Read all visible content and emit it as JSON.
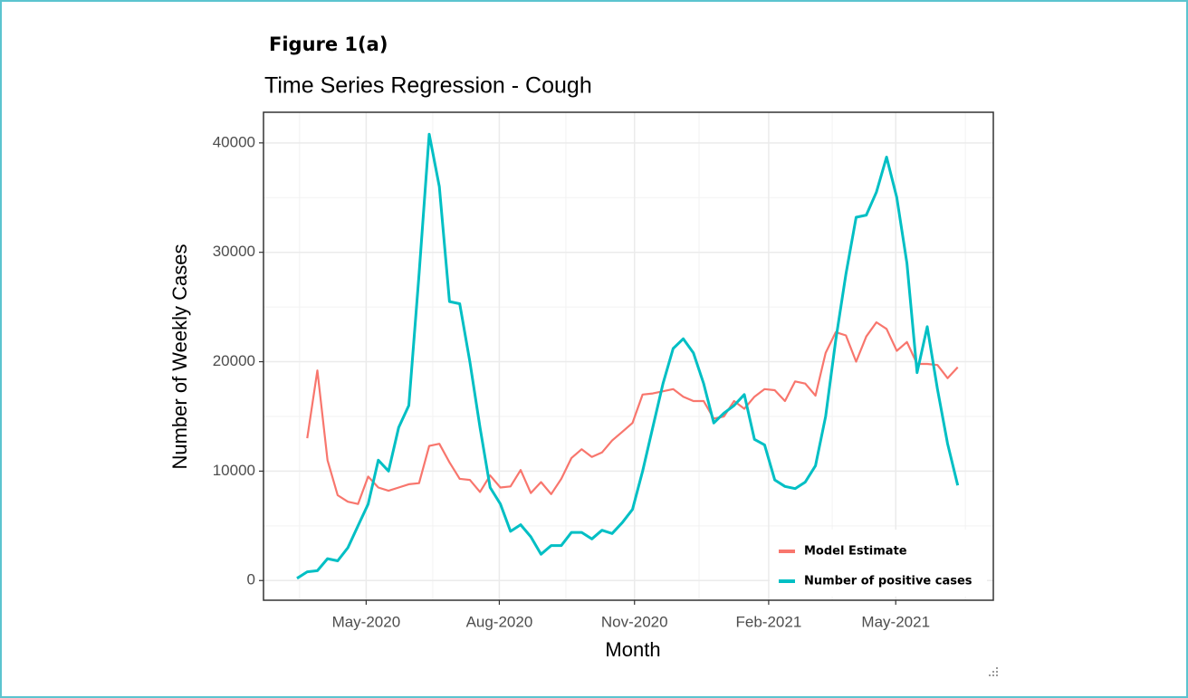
{
  "chart_data": {
    "type": "line",
    "figure_label": "Figure 1(a)",
    "title": "Time Series Regression - Cough",
    "x_label": "Month",
    "y_label": "Number of Weekly Cases",
    "x": [
      1,
      2,
      3,
      4,
      5,
      6,
      7,
      8,
      9,
      10,
      11,
      12,
      13,
      14,
      15,
      16,
      17,
      18,
      19,
      20,
      21,
      22,
      23,
      24,
      25,
      26,
      27,
      28,
      29,
      30,
      31,
      32,
      33,
      34,
      35,
      36,
      37,
      38,
      39,
      40,
      41,
      42,
      43,
      44,
      45,
      46,
      47,
      48,
      49,
      50,
      51,
      52,
      53,
      54,
      55,
      56,
      57,
      58,
      59,
      60,
      61,
      62,
      63,
      64,
      65,
      66
    ],
    "series": [
      {
        "name": "Model Estimate",
        "color": "#F8766D",
        "values": [
          null,
          13000,
          19200,
          11000,
          7800,
          7200,
          7000,
          9500,
          8500,
          8200,
          8500,
          8800,
          8900,
          12300,
          12500,
          10800,
          9300,
          9200,
          8100,
          9600,
          8500,
          8600,
          10100,
          8000,
          9000,
          7900,
          9300,
          11200,
          12000,
          11300,
          11700,
          12800,
          13600,
          14400,
          17000,
          17100,
          17300,
          17500,
          16800,
          16400,
          16400,
          14800,
          15000,
          16400,
          15700,
          16800,
          17500,
          17400,
          16400,
          18200,
          18000,
          16900,
          20800,
          22700,
          22400,
          20000,
          22300,
          23600,
          23000,
          21000,
          21800,
          19800,
          19800,
          19700,
          18500,
          19500
        ]
      },
      {
        "name": "Number of positive cases",
        "color": "#00BFC4",
        "values": [
          200,
          800,
          900,
          2000,
          1800,
          3000,
          5000,
          7000,
          11000,
          10000,
          14000,
          16000,
          28000,
          40800,
          36000,
          25500,
          25300,
          20000,
          14000,
          8500,
          7000,
          4500,
          5100,
          4000,
          2400,
          3200,
          3200,
          4400,
          4400,
          3800,
          4600,
          4300,
          5300,
          6500,
          10000,
          14000,
          18000,
          21200,
          22100,
          20800,
          18000,
          14400,
          15300,
          16000,
          17000,
          12900,
          12400,
          9200,
          8600,
          8400,
          9000,
          10500,
          15000,
          22000,
          28000,
          33200,
          33400,
          35500,
          38700,
          35000,
          29000,
          19000,
          23200,
          17500,
          12500,
          8700
        ]
      }
    ],
    "xlim": [
      -2.3,
      69.5
    ],
    "xticks": [
      {
        "value": 7.8,
        "label": "May-2020"
      },
      {
        "value": 20.9,
        "label": "Aug-2020"
      },
      {
        "value": 34.2,
        "label": "Nov-2020"
      },
      {
        "value": 47.4,
        "label": "Feb-2021"
      },
      {
        "value": 59.9,
        "label": "May-2021"
      }
    ],
    "ylim": [
      -1800,
      42800
    ],
    "yticks": [
      0,
      10000,
      20000,
      30000,
      40000
    ],
    "grid": true,
    "legend": "bottom-right"
  }
}
